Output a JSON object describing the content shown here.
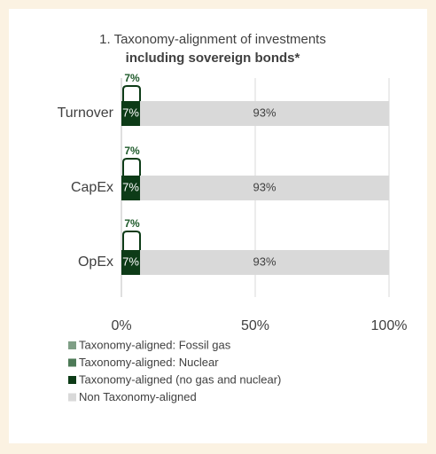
{
  "chart_data": {
    "type": "stacked-barh",
    "title": "1. Taxonomy-alignment of investments",
    "subtitle": "including sovereign bonds*",
    "categories": [
      "Turnover",
      "CapEx",
      "OpEx"
    ],
    "series": [
      {
        "name": "Taxonomy-aligned: Fossil gas",
        "color": "#7f9f86",
        "values": [
          0,
          0,
          0
        ]
      },
      {
        "name": "Taxonomy-aligned: Nuclear",
        "color": "#4d7a57",
        "values": [
          0,
          0,
          0
        ]
      },
      {
        "name": "Taxonomy-aligned (no gas and nuclear)",
        "color": "#0d3b17",
        "values": [
          7,
          7,
          7
        ],
        "value_labels": [
          "7%",
          "7%",
          "7%"
        ]
      },
      {
        "name": "Non Taxonomy-aligned",
        "color": "#d9d9d9",
        "values": [
          93,
          93,
          93
        ],
        "value_labels": [
          "93%",
          "93%",
          "93%"
        ]
      }
    ],
    "bracket_labels": [
      "7%",
      "7%",
      "7%"
    ],
    "xlim": [
      0,
      100
    ],
    "xticks": [
      {
        "value": 0,
        "label": "0%"
      },
      {
        "value": 50,
        "label": "50%"
      },
      {
        "value": 100,
        "label": "100%"
      }
    ],
    "grid": true,
    "legend": "bottom"
  }
}
